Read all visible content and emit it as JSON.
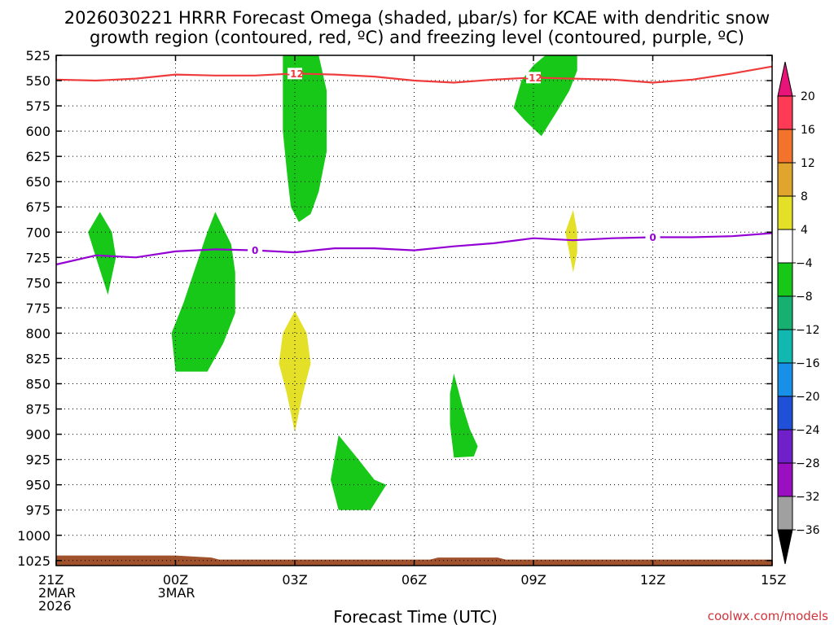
{
  "chart_data": {
    "type": "time-height cross section",
    "title_line1": "2026030221 HRRR Forecast Omega (shaded, μbar/s) for KCAE with dendritic snow",
    "title_line2": "growth region (contoured, red, ºC) and freezing level (contoured, purple, ºC)",
    "xlabel": "Forecast Time (UTC)",
    "credit": "coolwx.com/models",
    "x_range_hours": [
      0,
      18
    ],
    "y_range_hpa": [
      525,
      1030
    ],
    "y_ticks": [
      525,
      550,
      575,
      600,
      625,
      650,
      675,
      700,
      725,
      750,
      775,
      800,
      825,
      850,
      875,
      900,
      925,
      950,
      975,
      1000,
      1025
    ],
    "x_ticks": [
      {
        "hour": 0,
        "lines": [
          "21Z",
          "2MAR",
          "2026"
        ]
      },
      {
        "hour": 3,
        "lines": [
          "00Z",
          "3MAR"
        ]
      },
      {
        "hour": 6,
        "lines": [
          "03Z"
        ]
      },
      {
        "hour": 9,
        "lines": [
          "06Z"
        ]
      },
      {
        "hour": 12,
        "lines": [
          "09Z"
        ]
      },
      {
        "hour": 15,
        "lines": [
          "12Z"
        ]
      },
      {
        "hour": 18,
        "lines": [
          "15Z"
        ]
      }
    ],
    "colorbar": {
      "labels": [
        "20",
        "16",
        "12",
        "8",
        "4",
        "−4",
        "−8",
        "−12",
        "−16",
        "−20",
        "−24",
        "−28",
        "−32",
        "−36"
      ],
      "colors": [
        "#ff3a56",
        "#f4732c",
        "#e0a52c",
        "#e4e028",
        "#ffffff",
        "#18c818",
        "#18b070",
        "#12b8b0",
        "#1890e8",
        "#2050d8",
        "#7020c8",
        "#9a10c0",
        "#a0a0a0"
      ],
      "top_arrow_color": "#e8147a",
      "bottom_arrow_color": "#000000"
    },
    "contours": [
      {
        "name": "dendritic growth (-12C)",
        "color": "#ee3b3b",
        "label": "-12",
        "label_hours": [
          6.0,
          12.0
        ],
        "points": [
          [
            0,
            549
          ],
          [
            1,
            550
          ],
          [
            2,
            548
          ],
          [
            3,
            544
          ],
          [
            4,
            545
          ],
          [
            5,
            545
          ],
          [
            6,
            543
          ],
          [
            7,
            544
          ],
          [
            8,
            546
          ],
          [
            9,
            550
          ],
          [
            10,
            552
          ],
          [
            11,
            549
          ],
          [
            12,
            547
          ],
          [
            13,
            548
          ],
          [
            14,
            549
          ],
          [
            15,
            552
          ],
          [
            16,
            549
          ],
          [
            17,
            543
          ],
          [
            18,
            536
          ]
        ]
      },
      {
        "name": "freezing level (0C)",
        "color": "#9400d3",
        "label": "0",
        "label_hours": [
          5.0,
          15.0
        ],
        "points": [
          [
            0,
            732
          ],
          [
            1,
            723
          ],
          [
            2,
            725
          ],
          [
            3,
            719
          ],
          [
            4,
            717
          ],
          [
            5,
            718
          ],
          [
            6,
            720
          ],
          [
            7,
            716
          ],
          [
            8,
            716
          ],
          [
            9,
            718
          ],
          [
            10,
            714
          ],
          [
            11,
            711
          ],
          [
            12,
            706
          ],
          [
            13,
            708
          ],
          [
            14,
            706
          ],
          [
            15,
            705
          ],
          [
            16,
            705
          ],
          [
            17,
            704
          ],
          [
            18,
            701
          ]
        ]
      }
    ],
    "omega_regions": [
      {
        "value_range": "-8 to -4",
        "color": "#18c818",
        "points": [
          [
            5.7,
            525
          ],
          [
            6.6,
            525
          ],
          [
            6.8,
            560
          ],
          [
            6.8,
            620
          ],
          [
            6.6,
            660
          ],
          [
            6.4,
            682
          ],
          [
            6.1,
            690
          ],
          [
            5.9,
            675
          ],
          [
            5.8,
            640
          ],
          [
            5.7,
            600
          ]
        ]
      },
      {
        "value_range": "-8 to -4",
        "color": "#18c818",
        "points": [
          [
            12.3,
            525
          ],
          [
            13.1,
            525
          ],
          [
            13.1,
            540
          ],
          [
            12.9,
            560
          ],
          [
            12.6,
            580
          ],
          [
            12.2,
            605
          ],
          [
            11.8,
            590
          ],
          [
            11.5,
            577
          ],
          [
            11.7,
            550
          ],
          [
            12.0,
            535
          ]
        ]
      },
      {
        "value_range": "-8 to -4",
        "color": "#18c818",
        "points": [
          [
            1.1,
            680
          ],
          [
            1.4,
            700
          ],
          [
            1.5,
            725
          ],
          [
            1.3,
            762
          ],
          [
            1.0,
            725
          ],
          [
            0.8,
            700
          ]
        ]
      },
      {
        "value_range": "-8 to -4",
        "color": "#18c818",
        "points": [
          [
            4.0,
            680
          ],
          [
            4.4,
            712
          ],
          [
            4.5,
            740
          ],
          [
            4.5,
            780
          ],
          [
            4.2,
            810
          ],
          [
            3.8,
            838
          ],
          [
            3.0,
            838
          ],
          [
            2.9,
            800
          ],
          [
            3.2,
            770
          ],
          [
            3.5,
            735
          ],
          [
            3.8,
            700
          ]
        ]
      },
      {
        "value_range": "-8 to -4",
        "color": "#18c818",
        "points": [
          [
            7.1,
            901
          ],
          [
            7.6,
            925
          ],
          [
            8.0,
            945
          ],
          [
            8.3,
            950
          ],
          [
            7.9,
            975
          ],
          [
            7.1,
            975
          ],
          [
            6.9,
            945
          ]
        ]
      },
      {
        "value_range": "-8 to -4",
        "color": "#18c818",
        "points": [
          [
            10.0,
            840
          ],
          [
            10.2,
            870
          ],
          [
            10.4,
            895
          ],
          [
            10.6,
            912
          ],
          [
            10.5,
            922
          ],
          [
            10.0,
            923
          ],
          [
            9.9,
            890
          ],
          [
            9.9,
            860
          ]
        ]
      },
      {
        "value_range": "4 to 8",
        "color": "#e4e028",
        "points": [
          [
            6.0,
            778
          ],
          [
            6.3,
            800
          ],
          [
            6.4,
            830
          ],
          [
            6.2,
            860
          ],
          [
            6.0,
            898
          ],
          [
            5.8,
            860
          ],
          [
            5.6,
            830
          ],
          [
            5.7,
            800
          ]
        ]
      },
      {
        "value_range": "4 to 8",
        "color": "#e4e028",
        "points": [
          [
            13.0,
            678
          ],
          [
            13.1,
            700
          ],
          [
            13.1,
            720
          ],
          [
            13.0,
            740
          ],
          [
            12.9,
            720
          ],
          [
            12.8,
            700
          ]
        ]
      }
    ],
    "terrain": {
      "color": "#a0522d",
      "top_hpa": [
        [
          0,
          1020
        ],
        [
          3,
          1020
        ],
        [
          3.9,
          1022
        ],
        [
          4.1,
          1024
        ],
        [
          9.4,
          1024
        ],
        [
          9.6,
          1022
        ],
        [
          11.1,
          1022
        ],
        [
          11.3,
          1024
        ],
        [
          18,
          1024
        ]
      ]
    }
  }
}
